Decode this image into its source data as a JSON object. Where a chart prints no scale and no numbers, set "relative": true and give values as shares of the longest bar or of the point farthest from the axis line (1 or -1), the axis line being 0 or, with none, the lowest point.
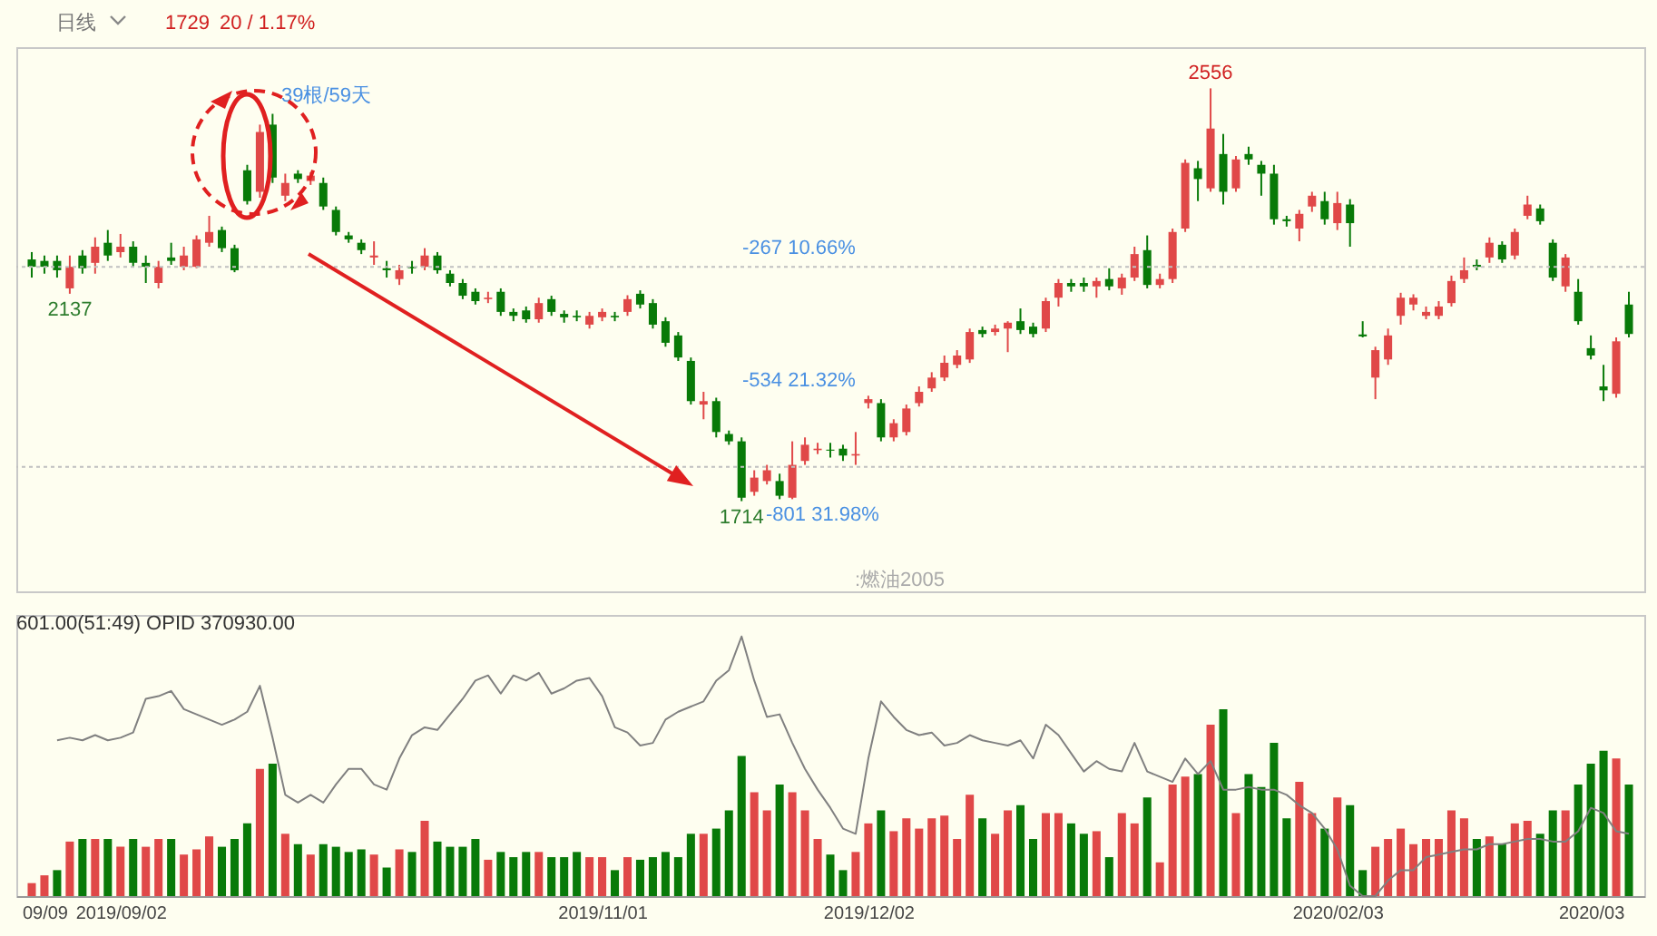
{
  "chart_data": [
    {
      "type": "candlestick",
      "tick_labels": false,
      "ylim": [
        1530,
        2640
      ],
      "categories": [
        null,
        null,
        null,
        null,
        null,
        null,
        null,
        null,
        null,
        null,
        null,
        null,
        null,
        null,
        null,
        null,
        null,
        null,
        null,
        null,
        null,
        null,
        null,
        null,
        null,
        null,
        null,
        null,
        null,
        null,
        null,
        null,
        null,
        null,
        null,
        null,
        null,
        null,
        null,
        null,
        null,
        null,
        null,
        null,
        null,
        null,
        null,
        null,
        null,
        null,
        null,
        null,
        null,
        null,
        null,
        null,
        null,
        null,
        null,
        null,
        null,
        null,
        null,
        null,
        null,
        null,
        null,
        null,
        null,
        null,
        null,
        null,
        null,
        null,
        null,
        null,
        null,
        null,
        null,
        null,
        null,
        null,
        null,
        null,
        null,
        null,
        null,
        null,
        null,
        null,
        null,
        null,
        null,
        null,
        null,
        null,
        null,
        null,
        null,
        null,
        null,
        null,
        null,
        null,
        null,
        null,
        null,
        null,
        null,
        null,
        null,
        null,
        null,
        null,
        null,
        null,
        null,
        null,
        null,
        null,
        null,
        null,
        null,
        null,
        null,
        null,
        null
      ],
      "ohlc": [
        [
          2207,
          2222,
          2170,
          2192
        ],
        [
          2204,
          2215,
          2178,
          2192
        ],
        [
          2204,
          2215,
          2170,
          2185
        ],
        [
          2148,
          2215,
          2137,
          2192
        ],
        [
          2215,
          2226,
          2178,
          2189
        ],
        [
          2200,
          2252,
          2178,
          2233
        ],
        [
          2241,
          2267,
          2204,
          2215
        ],
        [
          2222,
          2259,
          2211,
          2233
        ],
        [
          2233,
          2244,
          2192,
          2200
        ],
        [
          2200,
          2215,
          2159,
          2192
        ],
        [
          2159,
          2204,
          2148,
          2192
        ],
        [
          2211,
          2241,
          2196,
          2204
        ],
        [
          2192,
          2233,
          2185,
          2215
        ],
        [
          2192,
          2256,
          2189,
          2248
        ],
        [
          2241,
          2296,
          2233,
          2263
        ],
        [
          2267,
          2274,
          2222,
          2230
        ],
        [
          2230,
          2237,
          2181,
          2185
        ],
        [
          2389,
          2400,
          2319,
          2326
        ],
        [
          2345,
          2482,
          2333,
          2467
        ],
        [
          2482,
          2504,
          2363,
          2374
        ],
        [
          2337,
          2382,
          2326,
          2363
        ],
        [
          2382,
          2389,
          2363,
          2371
        ],
        [
          2367,
          2385,
          2359,
          2378
        ],
        [
          2363,
          2374,
          2308,
          2315
        ],
        [
          2308,
          2315,
          2256,
          2263
        ],
        [
          2256,
          2263,
          2241,
          2248
        ],
        [
          2241,
          2248,
          2218,
          2226
        ],
        [
          2211,
          2244,
          2196,
          2215
        ],
        [
          2189,
          2204,
          2170,
          2185
        ],
        [
          2167,
          2196,
          2155,
          2185
        ],
        [
          2192,
          2204,
          2178,
          2189
        ],
        [
          2192,
          2230,
          2185,
          2215
        ],
        [
          2215,
          2222,
          2178,
          2185
        ],
        [
          2178,
          2185,
          2152,
          2159
        ],
        [
          2159,
          2167,
          2126,
          2133
        ],
        [
          2141,
          2148,
          2115,
          2122
        ],
        [
          2126,
          2141,
          2118,
          2129
        ],
        [
          2141,
          2148,
          2092,
          2100
        ],
        [
          2100,
          2107,
          2081,
          2092
        ],
        [
          2103,
          2111,
          2078,
          2085
        ],
        [
          2085,
          2129,
          2078,
          2118
        ],
        [
          2126,
          2133,
          2092,
          2100
        ],
        [
          2096,
          2103,
          2078,
          2089
        ],
        [
          2092,
          2103,
          2081,
          2089
        ],
        [
          2074,
          2100,
          2066,
          2092
        ],
        [
          2089,
          2107,
          2081,
          2100
        ],
        [
          2092,
          2100,
          2081,
          2089
        ],
        [
          2100,
          2134,
          2092,
          2126
        ],
        [
          2137,
          2144,
          2107,
          2115
        ],
        [
          2118,
          2126,
          2066,
          2074
        ],
        [
          2081,
          2089,
          2029,
          2037
        ],
        [
          2052,
          2059,
          2000,
          2007
        ],
        [
          2000,
          2007,
          1911,
          1918
        ],
        [
          1911,
          1937,
          1881,
          1918
        ],
        [
          1918,
          1925,
          1844,
          1855
        ],
        [
          1851,
          1858,
          1829,
          1836
        ],
        [
          1836,
          1844,
          1714,
          1721
        ],
        [
          1733,
          1777,
          1725,
          1762
        ],
        [
          1755,
          1788,
          1748,
          1777
        ],
        [
          1755,
          1770,
          1718,
          1725
        ],
        [
          1721,
          1836,
          1718,
          1788
        ],
        [
          1796,
          1844,
          1788,
          1829
        ],
        [
          1818,
          1833,
          1810,
          1821
        ],
        [
          1819,
          1833,
          1803,
          1817
        ],
        [
          1821,
          1829,
          1796,
          1807
        ],
        [
          1807,
          1855,
          1788,
          1810
        ],
        [
          1914,
          1929,
          1903,
          1922
        ],
        [
          1914,
          1922,
          1836,
          1844
        ],
        [
          1844,
          1881,
          1836,
          1873
        ],
        [
          1855,
          1911,
          1848,
          1903
        ],
        [
          1914,
          1948,
          1907,
          1937
        ],
        [
          1944,
          1977,
          1937,
          1966
        ],
        [
          1966,
          2011,
          1959,
          1996
        ],
        [
          1992,
          2022,
          1985,
          2011
        ],
        [
          2003,
          2066,
          1996,
          2059
        ],
        [
          2063,
          2070,
          2048,
          2055
        ],
        [
          2059,
          2074,
          2052,
          2066
        ],
        [
          2066,
          2081,
          2018,
          2078
        ],
        [
          2081,
          2107,
          2055,
          2063
        ],
        [
          2070,
          2078,
          2048,
          2055
        ],
        [
          2066,
          2129,
          2059,
          2122
        ],
        [
          2129,
          2167,
          2111,
          2159
        ],
        [
          2159,
          2167,
          2141,
          2152
        ],
        [
          2159,
          2170,
          2141,
          2152
        ],
        [
          2152,
          2170,
          2129,
          2163
        ],
        [
          2167,
          2189,
          2144,
          2152
        ],
        [
          2148,
          2178,
          2135,
          2170
        ],
        [
          2170,
          2233,
          2163,
          2218
        ],
        [
          2226,
          2256,
          2148,
          2155
        ],
        [
          2155,
          2178,
          2148,
          2167
        ],
        [
          2167,
          2270,
          2159,
          2263
        ],
        [
          2270,
          2411,
          2263,
          2404
        ],
        [
          2393,
          2408,
          2326,
          2371
        ],
        [
          2352,
          2556,
          2345,
          2474
        ],
        [
          2422,
          2463,
          2319,
          2345
        ],
        [
          2352,
          2418,
          2345,
          2411
        ],
        [
          2422,
          2437,
          2400,
          2411
        ],
        [
          2400,
          2408,
          2337,
          2382
        ],
        [
          2382,
          2400,
          2278,
          2289
        ],
        [
          2289,
          2296,
          2274,
          2285
        ],
        [
          2270,
          2308,
          2244,
          2300
        ],
        [
          2315,
          2345,
          2304,
          2337
        ],
        [
          2326,
          2345,
          2278,
          2289
        ],
        [
          2281,
          2345,
          2267,
          2322
        ],
        [
          2319,
          2330,
          2233,
          2281
        ],
        [
          2054,
          2081,
          2048,
          2050
        ],
        [
          1966,
          2029,
          1922,
          2022
        ],
        [
          2003,
          2066,
          1992,
          2052
        ],
        [
          2092,
          2139,
          2074,
          2129
        ],
        [
          2115,
          2136,
          2103,
          2129
        ],
        [
          2092,
          2111,
          2085,
          2100
        ],
        [
          2092,
          2122,
          2085,
          2111
        ],
        [
          2118,
          2174,
          2111,
          2163
        ],
        [
          2167,
          2211,
          2159,
          2185
        ],
        [
          2196,
          2207,
          2185,
          2192
        ],
        [
          2211,
          2252,
          2200,
          2241
        ],
        [
          2237,
          2244,
          2200,
          2207
        ],
        [
          2215,
          2270,
          2207,
          2263
        ],
        [
          2296,
          2337,
          2289,
          2319
        ],
        [
          2311,
          2319,
          2278,
          2285
        ],
        [
          2241,
          2248,
          2163,
          2170
        ],
        [
          2152,
          2218,
          2141,
          2211
        ],
        [
          2141,
          2167,
          2074,
          2081
        ],
        [
          2026,
          2052,
          2003,
          2011
        ],
        [
          1948,
          1992,
          1918,
          1940
        ],
        [
          1933,
          2048,
          1925,
          2040
        ],
        [
          2115,
          2141,
          2048,
          2055
        ]
      ],
      "colors": [
        "#087a08",
        "#087a08",
        "#087a08",
        "#e04848",
        "#087a08",
        "#e04848",
        "#087a08",
        "#e04848",
        "#087a08",
        "#087a08",
        "#e04848",
        "#087a08",
        "#e04848",
        "#e04848",
        "#e04848",
        "#087a08",
        "#087a08",
        "#087a08",
        "#e04848",
        "#087a08",
        "#e04848",
        "#087a08",
        "#e04848",
        "#087a08",
        "#087a08",
        "#087a08",
        "#087a08",
        "#e04848",
        "#087a08",
        "#e04848",
        "#087a08",
        "#e04848",
        "#087a08",
        "#087a08",
        "#087a08",
        "#087a08",
        "#e04848",
        "#087a08",
        "#087a08",
        "#087a08",
        "#e04848",
        "#087a08",
        "#087a08",
        "#087a08",
        "#e04848",
        "#e04848",
        "#087a08",
        "#e04848",
        "#087a08",
        "#087a08",
        "#087a08",
        "#087a08",
        "#087a08",
        "#e04848",
        "#087a08",
        "#087a08",
        "#087a08",
        "#e04848",
        "#e04848",
        "#087a08",
        "#e04848",
        "#e04848",
        "#e04848",
        "#087a08",
        "#087a08",
        "#e04848",
        "#e04848",
        "#087a08",
        "#e04848",
        "#e04848",
        "#e04848",
        "#e04848",
        "#e04848",
        "#e04848",
        "#e04848",
        "#087a08",
        "#e04848",
        "#e04848",
        "#087a08",
        "#087a08",
        "#e04848",
        "#e04848",
        "#087a08",
        "#087a08",
        "#e04848",
        "#087a08",
        "#e04848",
        "#e04848",
        "#087a08",
        "#e04848",
        "#e04848",
        "#e04848",
        "#087a08",
        "#e04848",
        "#087a08",
        "#e04848",
        "#087a08",
        "#087a08",
        "#087a08",
        "#087a08",
        "#e04848",
        "#e04848",
        "#087a08",
        "#e04848",
        "#087a08",
        "#087a08",
        "#e04848",
        "#e04848",
        "#e04848",
        "#e04848",
        "#e04848",
        "#e04848",
        "#e04848",
        "#e04848",
        "#087a08",
        "#e04848",
        "#087a08",
        "#e04848",
        "#e04848",
        "#087a08",
        "#087a08",
        "#e04848",
        "#087a08",
        "#087a08",
        "#087a08",
        "#e04848",
        "#087a08"
      ],
      "ref_lines": [
        {
          "axis": "y",
          "value": 2192,
          "line_style": "dotted",
          "color": "#c0c0c0"
        },
        {
          "axis": "y",
          "value": 1784,
          "line_style": "dotted",
          "color": "#c0c0c0"
        }
      ],
      "annotations": [
        "日线",
        "1729",
        "20 / 1.17%",
        "39根/59天",
        ":燃油2005",
        "-267 10.66%",
        "-534 21.32%",
        "-801 31.98%",
        {
          "text": "2556",
          "y": 2556
        },
        {
          "text": "2137",
          "y": 2137
        },
        {
          "text": "1714",
          "y": 1714
        }
      ]
    },
    {
      "type": "bar",
      "relative": true,
      "tick_labels": "x",
      "categories": [
        null,
        "09/09",
        null,
        null,
        null,
        null,
        null,
        "2019/09/02",
        null,
        null,
        null,
        null,
        null,
        null,
        null,
        null,
        null,
        null,
        null,
        null,
        null,
        null,
        null,
        null,
        null,
        null,
        null,
        null,
        null,
        null,
        null,
        null,
        null,
        null,
        null,
        null,
        null,
        null,
        null,
        null,
        null,
        null,
        null,
        null,
        null,
        "2019/11/01",
        null,
        null,
        null,
        null,
        null,
        null,
        null,
        null,
        null,
        null,
        null,
        null,
        null,
        null,
        null,
        null,
        null,
        null,
        null,
        null,
        "2019/12/02",
        null,
        null,
        null,
        null,
        null,
        null,
        null,
        null,
        null,
        null,
        null,
        null,
        null,
        null,
        null,
        null,
        null,
        null,
        null,
        null,
        null,
        null,
        null,
        null,
        null,
        null,
        null,
        null,
        null,
        null,
        null,
        null,
        null,
        null,
        null,
        null,
        "2020/02/03",
        null,
        null,
        null,
        null,
        null,
        null,
        null,
        null,
        null,
        null,
        null,
        null,
        null,
        null,
        null,
        null,
        null,
        null,
        null,
        "2020/03",
        null,
        null,
        null
      ],
      "annotations": [
        "601.00(51:49)  OPID 370930.00"
      ],
      "series": [
        {
          "type": "bar",
          "values": [
            0.05,
            0.08,
            0.1,
            0.21,
            0.22,
            0.22,
            0.22,
            0.19,
            0.22,
            0.19,
            0.22,
            0.22,
            0.16,
            0.18,
            0.23,
            0.19,
            0.22,
            0.28,
            0.49,
            0.51,
            0.24,
            0.2,
            0.16,
            0.2,
            0.19,
            0.17,
            0.18,
            0.16,
            0.11,
            0.18,
            0.17,
            0.29,
            0.21,
            0.19,
            0.19,
            0.22,
            0.14,
            0.17,
            0.15,
            0.17,
            0.17,
            0.15,
            0.15,
            0.17,
            0.15,
            0.15,
            0.1,
            0.15,
            0.14,
            0.15,
            0.17,
            0.15,
            0.24,
            0.24,
            0.26,
            0.33,
            0.54,
            0.4,
            0.33,
            0.43,
            0.4,
            0.33,
            0.22,
            0.16,
            0.1,
            0.17,
            0.28,
            0.33,
            0.25,
            0.3,
            0.26,
            0.3,
            0.31,
            0.22,
            0.39,
            0.3,
            0.24,
            0.33,
            0.35,
            0.22,
            0.32,
            0.32,
            0.28,
            0.24,
            0.25,
            0.15,
            0.32,
            0.28,
            0.38,
            0.13,
            0.43,
            0.46,
            0.47,
            0.66,
            0.72,
            0.32,
            0.47,
            0.42,
            0.59,
            0.3,
            0.44,
            0.32,
            0.26,
            0.38,
            0.35,
            0.1,
            0.19,
            0.22,
            0.26,
            0.2,
            0.22,
            0.22,
            0.33,
            0.3,
            0.22,
            0.23,
            0.2,
            0.28,
            0.29,
            0.24,
            0.33,
            0.33,
            0.43,
            0.51,
            0.56,
            0.53,
            0.43
          ],
          "colors": [
            "#e04848",
            "#e04848",
            "#087a08",
            "#e04848",
            "#087a08",
            "#e04848",
            "#087a08",
            "#e04848",
            "#087a08",
            "#e04848",
            "#e04848",
            "#087a08",
            "#e04848",
            "#e04848",
            "#e04848",
            "#087a08",
            "#087a08",
            "#087a08",
            "#e04848",
            "#087a08",
            "#e04848",
            "#087a08",
            "#e04848",
            "#087a08",
            "#087a08",
            "#087a08",
            "#087a08",
            "#e04848",
            "#087a08",
            "#e04848",
            "#087a08",
            "#e04848",
            "#087a08",
            "#087a08",
            "#087a08",
            "#087a08",
            "#e04848",
            "#087a08",
            "#087a08",
            "#087a08",
            "#e04848",
            "#087a08",
            "#087a08",
            "#087a08",
            "#e04848",
            "#e04848",
            "#087a08",
            "#e04848",
            "#087a08",
            "#087a08",
            "#087a08",
            "#087a08",
            "#087a08",
            "#e04848",
            "#087a08",
            "#087a08",
            "#087a08",
            "#e04848",
            "#e04848",
            "#087a08",
            "#e04848",
            "#e04848",
            "#e04848",
            "#087a08",
            "#087a08",
            "#e04848",
            "#e04848",
            "#087a08",
            "#e04848",
            "#e04848",
            "#e04848",
            "#e04848",
            "#e04848",
            "#e04848",
            "#e04848",
            "#087a08",
            "#e04848",
            "#e04848",
            "#087a08",
            "#087a08",
            "#e04848",
            "#e04848",
            "#087a08",
            "#087a08",
            "#e04848",
            "#087a08",
            "#e04848",
            "#e04848",
            "#087a08",
            "#e04848",
            "#e04848",
            "#e04848",
            "#087a08",
            "#e04848",
            "#087a08",
            "#e04848",
            "#087a08",
            "#087a08",
            "#087a08",
            "#087a08",
            "#e04848",
            "#e04848",
            "#087a08",
            "#e04848",
            "#087a08",
            "#087a08",
            "#e04848",
            "#e04848",
            "#e04848",
            "#e04848",
            "#e04848",
            "#e04848",
            "#e04848",
            "#e04848",
            "#087a08",
            "#e04848",
            "#087a08",
            "#e04848",
            "#e04848",
            "#087a08",
            "#087a08",
            "#e04848",
            "#087a08",
            "#087a08",
            "#087a08",
            "#e04848",
            "#087a08"
          ]
        },
        {
          "type": "line",
          "color": "#808080",
          "values": [
            null,
            null,
            0.6,
            0.61,
            0.6,
            0.62,
            0.6,
            0.61,
            0.63,
            0.76,
            0.77,
            0.79,
            0.72,
            0.7,
            0.68,
            0.66,
            0.68,
            0.71,
            0.81,
            0.61,
            0.39,
            0.36,
            0.39,
            0.36,
            0.43,
            0.49,
            0.49,
            0.43,
            0.41,
            0.53,
            0.62,
            0.65,
            0.64,
            0.7,
            0.76,
            0.83,
            0.85,
            0.78,
            0.85,
            0.83,
            0.86,
            0.78,
            0.8,
            0.83,
            0.84,
            0.77,
            0.65,
            0.63,
            0.58,
            0.59,
            0.68,
            0.71,
            0.73,
            0.75,
            0.83,
            0.87,
            1,
            0.83,
            0.69,
            0.7,
            0.59,
            0.49,
            0.41,
            0.34,
            0.26,
            0.24,
            0.53,
            0.75,
            0.69,
            0.64,
            0.62,
            0.63,
            0.58,
            0.59,
            0.62,
            0.6,
            0.59,
            0.58,
            0.6,
            0.53,
            0.66,
            0.62,
            0.55,
            0.48,
            0.52,
            0.49,
            0.48,
            0.59,
            0.48,
            0.46,
            0.44,
            0.53,
            0.47,
            0.52,
            0.41,
            0.41,
            0.42,
            0.41,
            0.41,
            0.39,
            0.35,
            0.32,
            0.26,
            0.18,
            0.04,
            0,
            0,
            0.06,
            0.1,
            0.1,
            0.15,
            0.16,
            0.17,
            0.18,
            0.18,
            0.2,
            0.2,
            0.21,
            0.22,
            0.22,
            0.21,
            0.21,
            0.25,
            0.34,
            0.32,
            0.25,
            0.24
          ]
        }
      ]
    }
  ]
}
